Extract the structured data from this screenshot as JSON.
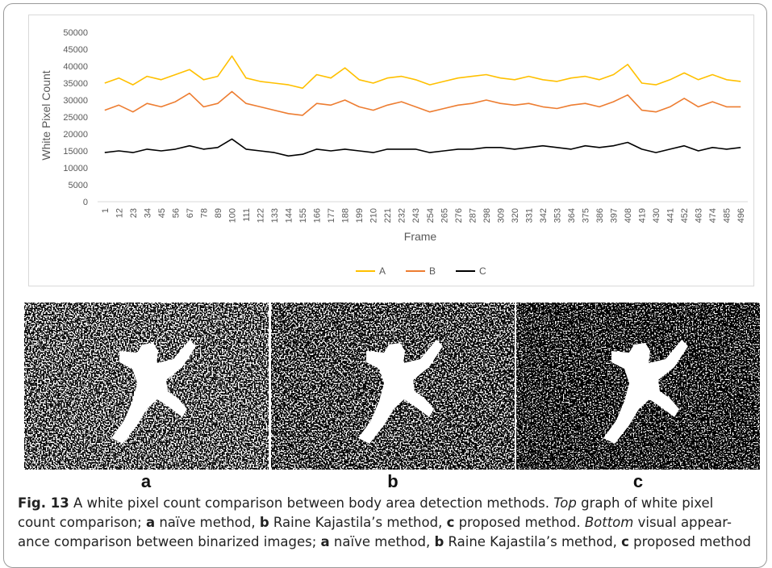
{
  "chart_data": {
    "type": "line",
    "x_title": "Frame",
    "y_title": "White Pixel Count",
    "categories": [
      "1",
      "12",
      "23",
      "34",
      "45",
      "56",
      "67",
      "78",
      "89",
      "100",
      "111",
      "122",
      "133",
      "144",
      "155",
      "166",
      "177",
      "188",
      "199",
      "210",
      "221",
      "232",
      "243",
      "254",
      "265",
      "276",
      "287",
      "298",
      "309",
      "320",
      "331",
      "342",
      "353",
      "364",
      "375",
      "386",
      "397",
      "408",
      "419",
      "430",
      "441",
      "452",
      "463",
      "474",
      "485",
      "496"
    ],
    "series": [
      {
        "name": "A",
        "color": "#ffc000",
        "values": [
          35000,
          36500,
          34500,
          37000,
          36000,
          37500,
          39000,
          36000,
          37000,
          43000,
          36500,
          35500,
          35000,
          34500,
          33500,
          37500,
          36500,
          39500,
          36000,
          35000,
          36500,
          37000,
          36000,
          34500,
          35500,
          36500,
          37000,
          37500,
          36500,
          36000,
          37000,
          36000,
          35500,
          36500,
          37000,
          36000,
          37500,
          40500,
          35000,
          34500,
          36000,
          38000,
          36000,
          37500,
          36000,
          35500
        ]
      },
      {
        "name": "B",
        "color": "#ed7d31",
        "values": [
          27000,
          28500,
          26500,
          29000,
          28000,
          29500,
          32000,
          28000,
          29000,
          32500,
          29000,
          28000,
          27000,
          26000,
          25500,
          29000,
          28500,
          30000,
          28000,
          27000,
          28500,
          29500,
          28000,
          26500,
          27500,
          28500,
          29000,
          30000,
          29000,
          28500,
          29000,
          28000,
          27500,
          28500,
          29000,
          28000,
          29500,
          31500,
          27000,
          26500,
          28000,
          30500,
          28000,
          29500,
          28000,
          28000
        ]
      },
      {
        "name": "C",
        "color": "#000000",
        "values": [
          14500,
          15000,
          14500,
          15500,
          15000,
          15500,
          16500,
          15500,
          16000,
          18500,
          15500,
          15000,
          14500,
          13500,
          14000,
          15500,
          15000,
          15500,
          15000,
          14500,
          15500,
          15500,
          15500,
          14500,
          15000,
          15500,
          15500,
          16000,
          16000,
          15500,
          16000,
          16500,
          16000,
          15500,
          16500,
          16000,
          16500,
          17500,
          15500,
          14500,
          15500,
          16500,
          15000,
          16000,
          15500,
          16000
        ]
      }
    ],
    "ylim": [
      0,
      50000
    ],
    "yticks": [
      0,
      5000,
      10000,
      15000,
      20000,
      25000,
      30000,
      35000,
      40000,
      45000,
      50000
    ],
    "grid": false,
    "legend": "bottom"
  },
  "panels": [
    {
      "label": "a"
    },
    {
      "label": "b"
    },
    {
      "label": "c"
    }
  ],
  "caption": [
    "Fig. 13",
    "  A white pixel count comparison between body area detection methods. ",
    "Top",
    " graph of white pixel",
    "count comparison; ",
    "a",
    " naïve method, ",
    "b",
    " Raine Kajastila’s method, ",
    "c",
    " proposed method. ",
    "Bottom",
    " visual appear-",
    "ance comparison between binarized images; ",
    "a",
    " naïve method, ",
    "b",
    " Raine Kajastila’s method, ",
    "c",
    " proposed method"
  ]
}
